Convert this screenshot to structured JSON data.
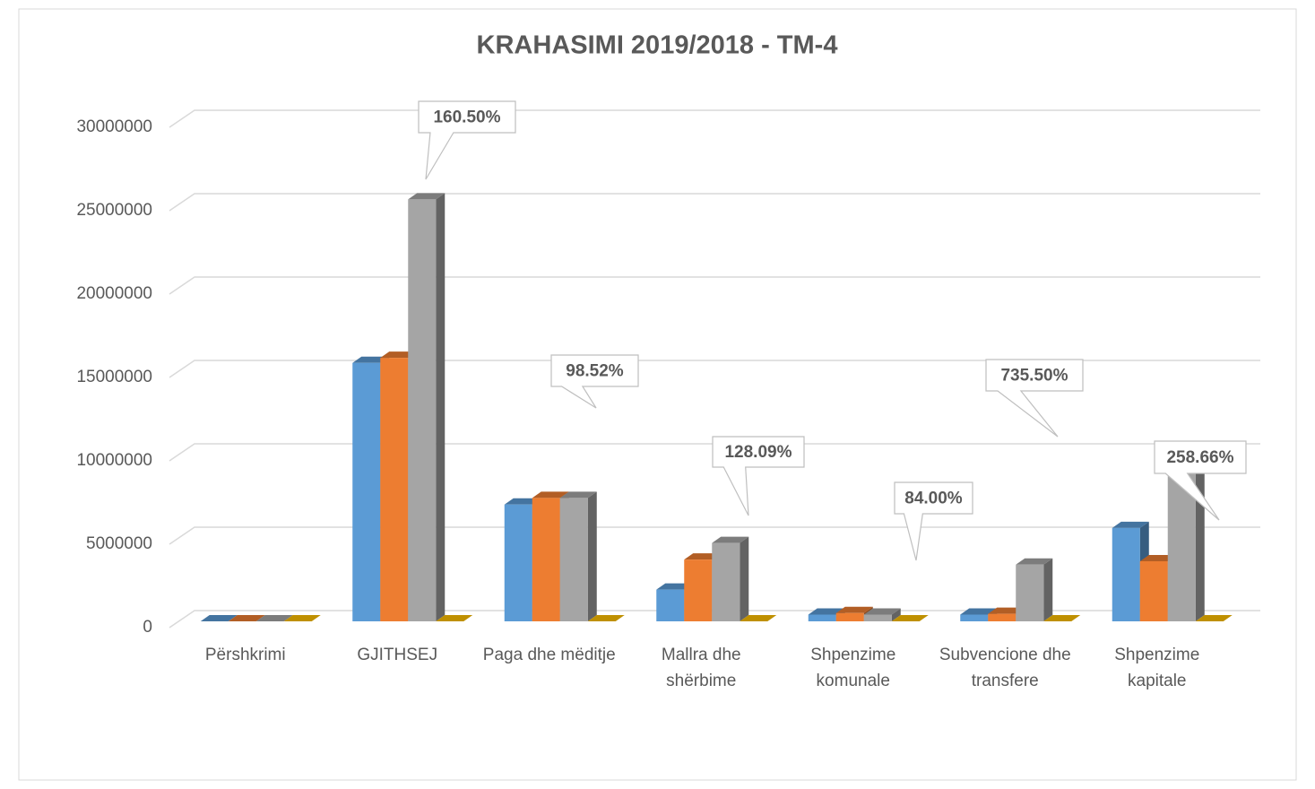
{
  "chart_data": {
    "type": "bar3d",
    "title": "KRAHASIMI 2019/2018 - TM-4",
    "categories": [
      "Përshkrimi",
      "GJITHSEJ",
      "Paga dhe mëditje",
      "Mallra dhe shërbime",
      "Shpenzime komunale",
      "Subvencione dhe transfere",
      "Shpenzime kapitale"
    ],
    "series": [
      {
        "color": "#5b9bd5",
        "values": [
          0,
          15500000,
          7000000,
          1900000,
          400000,
          400000,
          5600000
        ]
      },
      {
        "color": "#ed7d31",
        "values": [
          0,
          15800000,
          7400000,
          3700000,
          500000,
          450000,
          3600000
        ]
      },
      {
        "color": "#a5a5a5",
        "values": [
          0,
          25300000,
          7400000,
          4700000,
          400000,
          3400000,
          9000000
        ]
      },
      {
        "color": "#ffc000",
        "values": [
          0,
          160.5,
          98.52,
          128.09,
          84,
          735.5,
          258.66
        ],
        "value_labels": [
          null,
          "160.50%",
          "98.52%",
          "128.09%",
          "84.00%",
          "735.50%",
          "258.66%"
        ]
      }
    ],
    "ylim": [
      0,
      30000000
    ],
    "yticks": [
      0,
      5000000,
      10000000,
      15000000,
      20000000,
      25000000,
      30000000
    ],
    "grid": true
  }
}
